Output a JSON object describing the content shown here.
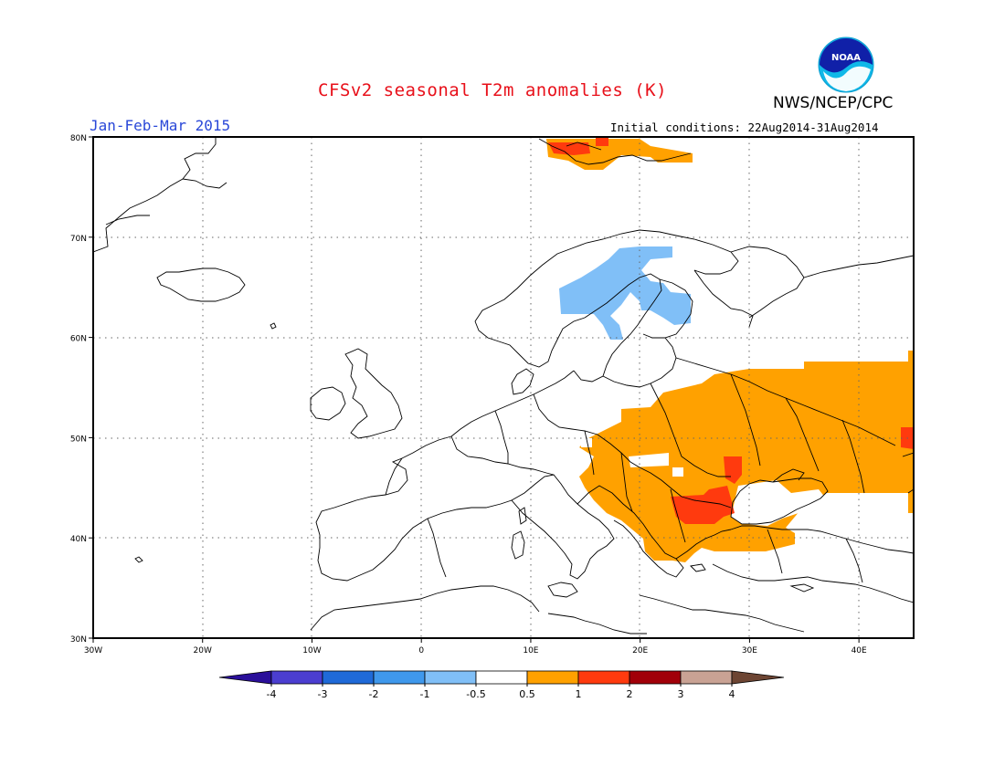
{
  "header": {
    "title": "CFSv2 seasonal T2m anomalies (K)",
    "organization": "NWS/NCEP/CPC",
    "period": "Jan-Feb-Mar 2015",
    "initial_conditions": "Initial conditions: 22Aug2014-31Aug2014",
    "logo_text": "NOAA"
  },
  "map": {
    "lon_range": [
      -30,
      45
    ],
    "lat_range": [
      30,
      80
    ],
    "lat_ticks": [
      "80N",
      "70N",
      "60N",
      "50N",
      "40N",
      "30N"
    ],
    "lon_ticks": [
      "30W",
      "20W",
      "10W",
      "0",
      "10E",
      "20E",
      "30E",
      "40E"
    ],
    "grid": true
  },
  "legend": {
    "labels": [
      "-4",
      "-3",
      "-2",
      "-1",
      "-0.5",
      "0.5",
      "1",
      "2",
      "3",
      "4"
    ],
    "colors": [
      "#2a0f9a",
      "#4b3ed0",
      "#1f6ad8",
      "#3f98ec",
      "#80bff7",
      "#ffffff",
      "#ffa100",
      "#ff3a0e",
      "#a10009",
      "#c9a294",
      "#6d4533"
    ]
  }
}
